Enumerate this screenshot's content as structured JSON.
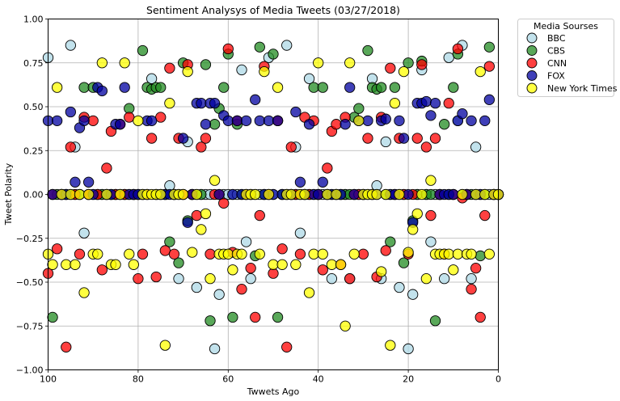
{
  "chart_data": {
    "type": "scatter",
    "title": "Sentiment Analysys of Media Tweets (03/27/2018)",
    "xlabel": "Twwets Ago",
    "ylabel": "Tweet Polarity",
    "xlim": [
      100,
      0
    ],
    "ylim": [
      -1.0,
      1.0
    ],
    "xticks": [
      100,
      80,
      60,
      40,
      20,
      0
    ],
    "yticks": [
      -1.0,
      -0.75,
      -0.5,
      -0.25,
      0.0,
      0.25,
      0.5,
      0.75,
      1.0
    ],
    "ytick_labels": [
      "−1.00",
      "−0.75",
      "−0.50",
      "−0.25",
      "0.00",
      "0.25",
      "0.50",
      "0.75",
      "1.00"
    ],
    "grid": true,
    "legend": {
      "title": "Media Sourses",
      "placement": "outside-top-right"
    },
    "series": [
      {
        "name": "BBC",
        "color": "#add8e6",
        "x": [
          100,
          95,
          94,
          92,
          77,
          73,
          71,
          69,
          67,
          63,
          62,
          57,
          56,
          55,
          51,
          49,
          47,
          45,
          44,
          42,
          37,
          33,
          28,
          27,
          26,
          25,
          22,
          20,
          19,
          17,
          15,
          12,
          11,
          9,
          8,
          6,
          5
        ],
        "y": [
          0.78,
          0.85,
          0.27,
          -0.22,
          0.66,
          0.05,
          -0.48,
          0.3,
          -0.53,
          -0.88,
          -0.57,
          0.71,
          -0.27,
          -0.48,
          0.78,
          0.42,
          0.85,
          0.27,
          -0.22,
          0.66,
          -0.48,
          -0.48,
          0.66,
          0.05,
          -0.48,
          0.3,
          -0.53,
          -0.88,
          -0.57,
          0.71,
          -0.27,
          -0.48,
          0.78,
          0.42,
          0.85,
          -0.48,
          0.27
        ],
        "zeros": [
          99,
          97,
          96,
          93,
          91,
          90,
          89,
          88,
          87,
          86,
          85,
          84,
          83,
          82,
          81,
          80,
          79,
          78,
          76,
          75,
          74,
          72,
          70,
          68,
          66,
          65,
          64,
          61,
          60,
          59,
          58,
          54,
          53,
          52,
          50,
          48,
          46,
          43,
          41,
          40,
          39,
          38,
          36,
          35,
          34,
          32,
          31,
          30,
          29,
          24,
          23,
          21,
          18,
          16,
          14,
          13,
          10,
          7,
          4,
          3,
          2,
          1,
          0
        ]
      },
      {
        "name": "CBS",
        "color": "#228b22",
        "x": [
          99,
          92,
          90,
          82,
          79,
          78,
          77,
          76,
          75,
          73,
          71,
          70,
          69,
          65,
          64,
          63,
          62,
          61,
          60,
          59,
          58,
          54,
          53,
          50,
          49,
          41,
          39,
          32,
          31,
          29,
          28,
          27,
          26,
          24,
          23,
          21,
          20,
          19,
          17,
          14,
          12,
          10,
          9,
          4,
          2
        ],
        "y": [
          -0.7,
          0.61,
          0.61,
          0.49,
          0.82,
          0.61,
          0.6,
          0.61,
          0.61,
          -0.27,
          -0.39,
          0.75,
          -0.15,
          0.74,
          -0.72,
          0.4,
          0.49,
          0.61,
          0.8,
          -0.7,
          0.4,
          -0.35,
          0.84,
          0.8,
          -0.7,
          0.61,
          0.61,
          0.44,
          0.49,
          0.82,
          0.61,
          0.6,
          0.61,
          -0.27,
          0.61,
          -0.39,
          0.75,
          -0.15,
          0.76,
          -0.72,
          0.4,
          0.61,
          0.8,
          -0.35,
          0.84
        ],
        "zeros": [
          98,
          97,
          96,
          95,
          94,
          93,
          91,
          89,
          88,
          87,
          86,
          85,
          84,
          83,
          81,
          80,
          74,
          72,
          68,
          67,
          66,
          57,
          56,
          55,
          52,
          51,
          48,
          47,
          46,
          45,
          44,
          43,
          42,
          40,
          38,
          37,
          36,
          35,
          34,
          33,
          30,
          25,
          22,
          18,
          16,
          15,
          13,
          11,
          8,
          7,
          6,
          5,
          3,
          1,
          0
        ]
      },
      {
        "name": "CNN",
        "color": "#ff0000",
        "x": [
          100,
          98,
          96,
          95,
          93,
          92,
          90,
          88,
          87,
          86,
          84,
          82,
          80,
          79,
          77,
          76,
          75,
          74,
          73,
          72,
          71,
          69,
          67,
          66,
          65,
          64,
          61,
          60,
          59,
          58,
          57,
          55,
          54,
          53,
          52,
          50,
          49,
          48,
          47,
          46,
          44,
          43,
          41,
          39,
          38,
          37,
          36,
          35,
          34,
          33,
          30,
          29,
          27,
          26,
          25,
          24,
          22,
          20,
          18,
          17,
          16,
          15,
          14,
          12,
          11,
          9,
          8,
          6,
          5,
          4,
          3,
          2
        ],
        "y": [
          -0.45,
          -0.31,
          -0.87,
          0.27,
          -0.34,
          0.44,
          0.42,
          -0.43,
          0.15,
          0.36,
          0.4,
          0.44,
          -0.48,
          -0.34,
          0.32,
          -0.47,
          0.44,
          -0.32,
          0.72,
          -0.34,
          0.32,
          0.74,
          -0.12,
          0.27,
          0.32,
          -0.34,
          -0.05,
          0.83,
          -0.33,
          0.42,
          -0.54,
          -0.42,
          -0.7,
          -0.12,
          0.73,
          -0.45,
          0.42,
          -0.31,
          -0.87,
          0.27,
          -0.34,
          0.44,
          0.42,
          -0.43,
          0.15,
          0.36,
          0.4,
          -0.4,
          0.44,
          -0.48,
          -0.34,
          0.32,
          -0.47,
          0.44,
          -0.32,
          0.72,
          0.32,
          -0.34,
          0.32,
          0.74,
          0.27,
          -0.12,
          0.32,
          -0.34,
          0.52,
          0.83,
          -0.02,
          -0.54,
          -0.42,
          -0.7,
          -0.12,
          0.73
        ],
        "zeros": [
          99,
          97,
          94,
          91,
          89,
          85,
          83,
          81,
          78,
          70,
          68,
          63,
          62,
          56,
          51,
          45,
          42,
          40,
          32,
          31,
          28,
          23,
          21,
          19,
          13,
          10,
          7,
          1,
          0
        ]
      },
      {
        "name": "FOX",
        "color": "#0000a0",
        "x": [
          100,
          98,
          95,
          94,
          93,
          92,
          91,
          89,
          88,
          85,
          84,
          83,
          78,
          77,
          70,
          69,
          67,
          66,
          65,
          64,
          63,
          61,
          60,
          58,
          56,
          54,
          53,
          51,
          49,
          45,
          44,
          42,
          39,
          34,
          33,
          31,
          29,
          26,
          25,
          22,
          21,
          19,
          18,
          17,
          16,
          15,
          14,
          9,
          8,
          6,
          3,
          2
        ],
        "y": [
          0.42,
          0.42,
          0.47,
          0.07,
          0.38,
          0.42,
          0.07,
          0.61,
          0.59,
          0.4,
          0.4,
          0.61,
          0.42,
          0.42,
          0.32,
          -0.16,
          0.52,
          0.52,
          0.4,
          0.52,
          0.52,
          0.45,
          0.42,
          0.42,
          0.42,
          0.54,
          0.42,
          0.42,
          0.42,
          0.47,
          0.07,
          0.4,
          0.07,
          0.4,
          0.61,
          0.42,
          0.42,
          0.42,
          0.43,
          0.42,
          0.32,
          -0.16,
          0.52,
          0.52,
          0.53,
          0.45,
          0.52,
          0.42,
          0.46,
          0.42,
          0.42,
          0.54
        ],
        "zeros": [
          99,
          97,
          96,
          90,
          87,
          86,
          82,
          81,
          80,
          79,
          76,
          75,
          74,
          73,
          72,
          71,
          68,
          62,
          59,
          57,
          55,
          52,
          50,
          48,
          47,
          46,
          43,
          41,
          40,
          38,
          37,
          36,
          35,
          32,
          30,
          28,
          27,
          24,
          23,
          20,
          13,
          12,
          11,
          10,
          7,
          5,
          4,
          1,
          0
        ]
      },
      {
        "name": "New York Times",
        "color": "#ffff00",
        "x": [
          100,
          99,
          98,
          96,
          94,
          92,
          90,
          89,
          88,
          86,
          85,
          83,
          82,
          81,
          80,
          74,
          73,
          69,
          68,
          66,
          65,
          64,
          63,
          62,
          61,
          60,
          59,
          58,
          57,
          53,
          52,
          50,
          49,
          48,
          45,
          42,
          41,
          40,
          39,
          37,
          35,
          34,
          33,
          32,
          31,
          26,
          24,
          23,
          21,
          20,
          19,
          18,
          16,
          15,
          14,
          13,
          12,
          11,
          10,
          9,
          7,
          6,
          4,
          2
        ],
        "y": [
          -0.34,
          -0.4,
          0.61,
          -0.4,
          -0.4,
          -0.56,
          -0.34,
          -0.34,
          0.75,
          -0.4,
          -0.4,
          0.75,
          -0.34,
          -0.4,
          0.42,
          -0.86,
          0.52,
          0.7,
          -0.33,
          -0.2,
          -0.11,
          -0.48,
          0.08,
          -0.34,
          -0.34,
          -0.34,
          -0.43,
          -0.34,
          -0.34,
          -0.34,
          0.7,
          -0.4,
          0.61,
          -0.4,
          -0.4,
          -0.56,
          -0.34,
          0.75,
          -0.34,
          -0.4,
          -0.4,
          -0.75,
          0.75,
          -0.34,
          0.42,
          -0.44,
          -0.86,
          0.52,
          0.7,
          -0.33,
          -0.2,
          -0.11,
          -0.48,
          0.08,
          -0.34,
          -0.34,
          -0.34,
          -0.34,
          -0.43,
          -0.34,
          -0.34,
          -0.34,
          0.7,
          -0.34
        ],
        "zeros": [
          97,
          95,
          93,
          91,
          87,
          84,
          79,
          78,
          77,
          76,
          75,
          72,
          71,
          70,
          67,
          56,
          55,
          54,
          51,
          47,
          46,
          44,
          43,
          38,
          36,
          30,
          29,
          28,
          27,
          25,
          22,
          17,
          8,
          5,
          3,
          1,
          0
        ]
      }
    ]
  }
}
